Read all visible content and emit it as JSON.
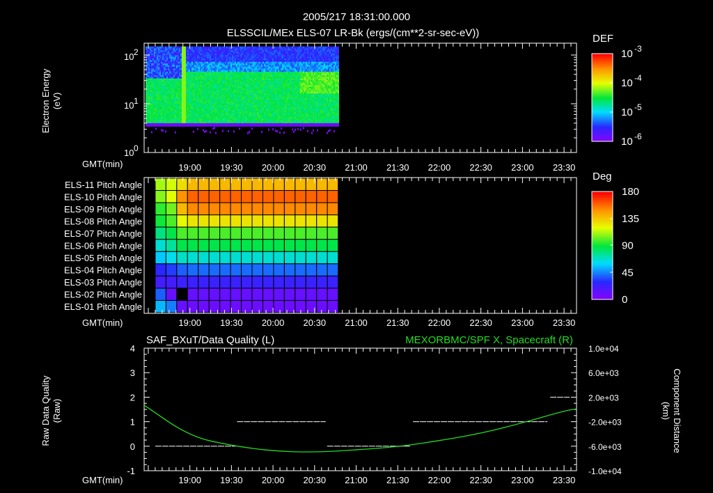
{
  "header": {
    "datetime": "2005/217 18:31:00.000",
    "title": "ELSSCIL/MEx ELS-07 LR-Bk  (ergs/(cm**2-sr-sec-eV))"
  },
  "time_axis": {
    "label": "GMT(min)",
    "ticks": [
      "19:00",
      "19:30",
      "20:00",
      "20:30",
      "21:00",
      "21:30",
      "22:00",
      "22:30",
      "23:00",
      "23:30"
    ],
    "range_min_after_18h": [
      27,
      339
    ]
  },
  "chart_data": [
    {
      "type": "heatmap",
      "title": "ELSSCIL/MEx ELS-07 LR-Bk",
      "ylabel": "Electron Energy",
      "yunits": "(eV)",
      "yscale": "log",
      "ylim": [
        1,
        180
      ],
      "ytick_labels": [
        {
          "base": "10",
          "exp": "0"
        },
        {
          "base": "10",
          "exp": "1"
        },
        {
          "base": "10",
          "exp": "2"
        }
      ],
      "data_time_range": [
        "18:28",
        "20:47"
      ],
      "data_energy_range": [
        4,
        150
      ],
      "colorbar": {
        "label": "DEF",
        "scale": "log",
        "range": [
          1e-06,
          0.001
        ],
        "tick_labels": [
          {
            "base": "10",
            "exp": "-3"
          },
          {
            "base": "10",
            "exp": "-4"
          },
          {
            "base": "10",
            "exp": "-5"
          },
          {
            "base": "10",
            "exp": "-6"
          }
        ]
      }
    },
    {
      "type": "heatmap",
      "ylabels": [
        "ELS-11 Pitch Angle",
        "ELS-10 Pitch Angle",
        "ELS-09 Pitch Angle",
        "ELS-08 Pitch Angle",
        "ELS-07 Pitch Angle",
        "ELS-06 Pitch Angle",
        "ELS-05 Pitch Angle",
        "ELS-04 Pitch Angle",
        "ELS-03 Pitch Angle",
        "ELS-02 Pitch Angle",
        "ELS-01 Pitch Angle"
      ],
      "row_values_deg": [
        140,
        160,
        152,
        128,
        100,
        88,
        68,
        42,
        25,
        12,
        10
      ],
      "early_cols_deg": [
        [
          112,
          118,
          130
        ],
        [
          108,
          120,
          150
        ],
        [
          96,
          105,
          140
        ],
        [
          92,
          100,
          122
        ],
        [
          80,
          88,
          100
        ],
        [
          68,
          76,
          88
        ],
        [
          58,
          64,
          70
        ],
        [
          30,
          34,
          40
        ],
        [
          22,
          22,
          25
        ],
        [
          40,
          12,
          0
        ],
        [
          55,
          45,
          12
        ]
      ],
      "n_columns": 17,
      "data_time_range": [
        "18:35",
        "20:47"
      ],
      "colorbar": {
        "label": "Deg",
        "range": [
          0,
          180
        ],
        "tick_labels": [
          "180",
          "135",
          "90",
          "45",
          "0"
        ]
      }
    },
    {
      "type": "line",
      "left_title": "SAF_BXuT/Data Quality (L)",
      "right_title": "MEXORBMC/SPF X, Spacecraft (R)",
      "ylabel_left": "Raw Data Quality",
      "yunits_left": "(Raw)",
      "ylabel_right": "Component Distance",
      "yunits_right": "(km)",
      "ylim_left": [
        -1,
        4
      ],
      "ylim_right": [
        -10000,
        10000
      ],
      "left_tick_labels": [
        "4",
        "3",
        "2",
        "1",
        "0",
        "-1"
      ],
      "right_tick_labels": [
        "1.0e+04",
        "6.0e+03",
        "2.0e+03",
        "-2.0e+03",
        "-6.0e+03",
        "-1.0e+04"
      ],
      "quality_segments": [
        {
          "start": "18:35",
          "end": "19:33",
          "value": 0
        },
        {
          "start": "19:34",
          "end": "20:38",
          "value": 1
        },
        {
          "start": "20:39",
          "end": "21:39",
          "value": 0
        },
        {
          "start": "21:41",
          "end": "23:18",
          "value": 1
        },
        {
          "start": "23:20",
          "end": "23:34",
          "value": 2
        }
      ],
      "spacecraft_x": {
        "color": "#22dd22",
        "points": [
          [
            "18:27",
            700
          ],
          [
            "19:00",
            -4400
          ],
          [
            "19:30",
            -5900
          ],
          [
            "20:00",
            -6800
          ],
          [
            "20:30",
            -7000
          ],
          [
            "21:00",
            -6600
          ],
          [
            "21:30",
            -6100
          ],
          [
            "22:00",
            -5100
          ],
          [
            "22:30",
            -3900
          ],
          [
            "23:00",
            -2200
          ],
          [
            "23:30",
            -240
          ],
          [
            "23:39",
            100
          ]
        ]
      }
    }
  ]
}
